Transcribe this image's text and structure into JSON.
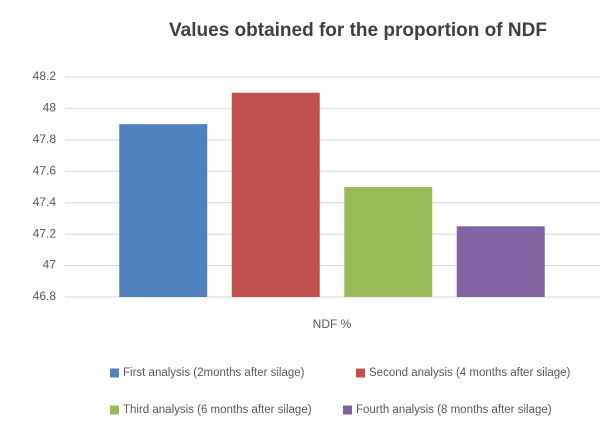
{
  "chart_data": {
    "type": "bar",
    "title": "Values obtained for the proportion of NDF",
    "categories": [
      "NDF %"
    ],
    "series": [
      {
        "name": "First analysis (2months after silage)",
        "color": "#4f81bd",
        "values": [
          47.9
        ]
      },
      {
        "name": "Second analysis (4 months after silage)",
        "color": "#c0504d",
        "values": [
          48.1
        ]
      },
      {
        "name": "Third analysis (6 months after silage)",
        "color": "#9bbb59",
        "values": [
          47.5
        ]
      },
      {
        "name": "Fourth analysis (8 months after silage)",
        "color": "#8064a2",
        "values": [
          47.25
        ]
      }
    ],
    "ylim": [
      46.8,
      48.2
    ],
    "yticks": [
      46.8,
      47,
      47.2,
      47.4,
      47.6,
      47.8,
      48,
      48.2
    ],
    "grid": true,
    "legend": "bottom"
  }
}
